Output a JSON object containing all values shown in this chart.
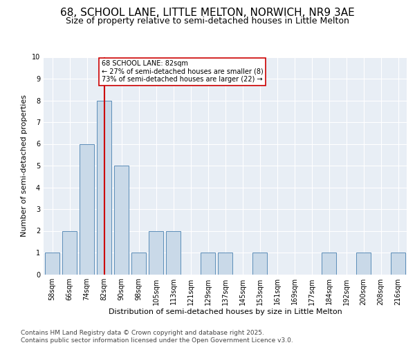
{
  "title": "68, SCHOOL LANE, LITTLE MELTON, NORWICH, NR9 3AE",
  "subtitle": "Size of property relative to semi-detached houses in Little Melton",
  "xlabel": "Distribution of semi-detached houses by size in Little Melton",
  "ylabel": "Number of semi-detached properties",
  "categories": [
    "58sqm",
    "66sqm",
    "74sqm",
    "82sqm",
    "90sqm",
    "98sqm",
    "105sqm",
    "113sqm",
    "121sqm",
    "129sqm",
    "137sqm",
    "145sqm",
    "153sqm",
    "161sqm",
    "169sqm",
    "177sqm",
    "184sqm",
    "192sqm",
    "200sqm",
    "208sqm",
    "216sqm"
  ],
  "values": [
    1,
    2,
    6,
    8,
    5,
    1,
    2,
    2,
    0,
    1,
    1,
    0,
    1,
    0,
    0,
    0,
    1,
    0,
    1,
    0,
    1
  ],
  "bar_color": "#c9d9e8",
  "bar_edge_color": "#5b8db8",
  "highlight_index": 3,
  "highlight_line_color": "#cc0000",
  "annotation_text": "68 SCHOOL LANE: 82sqm\n← 27% of semi-detached houses are smaller (8)\n73% of semi-detached houses are larger (22) →",
  "annotation_box_color": "#ffffff",
  "annotation_box_edge_color": "#cc0000",
  "ylim": [
    0,
    10
  ],
  "yticks": [
    0,
    1,
    2,
    3,
    4,
    5,
    6,
    7,
    8,
    9,
    10
  ],
  "footer_text": "Contains HM Land Registry data © Crown copyright and database right 2025.\nContains public sector information licensed under the Open Government Licence v3.0.",
  "background_color": "#e8eef5",
  "title_fontsize": 11,
  "subtitle_fontsize": 9,
  "axis_label_fontsize": 8,
  "tick_fontsize": 7,
  "footer_fontsize": 6.5,
  "annotation_fontsize": 7
}
